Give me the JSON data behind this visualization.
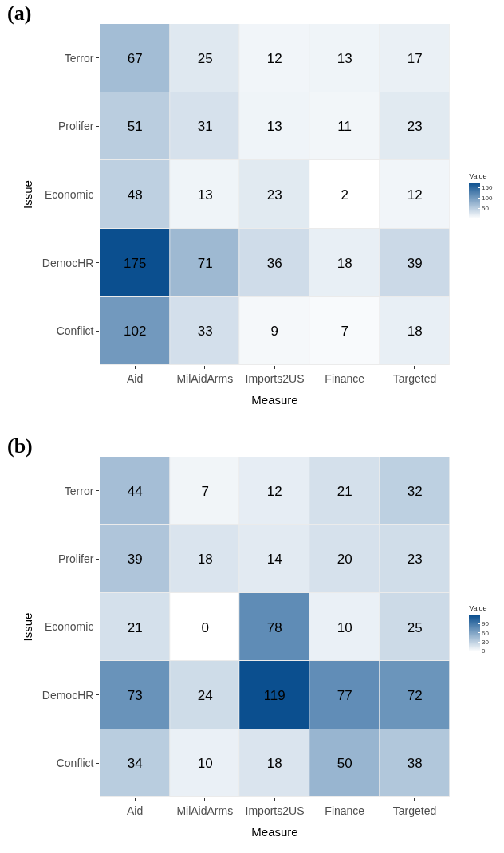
{
  "chart_data": [
    {
      "type": "heatmap",
      "title": "(a)",
      "xlabel": "Measure",
      "ylabel": "Issue",
      "clabel": "Value",
      "categories": [
        "Aid",
        "MilAidArms",
        "Imports2US",
        "Finance",
        "Targeted"
      ],
      "y_categories": [
        "Terror",
        "Prolifer",
        "Economic",
        "DemocHR",
        "Conflict"
      ],
      "cells": [
        [
          67,
          25,
          12,
          13,
          17
        ],
        [
          51,
          31,
          13,
          11,
          23
        ],
        [
          48,
          13,
          23,
          2,
          12
        ],
        [
          175,
          71,
          36,
          18,
          39
        ],
        [
          102,
          33,
          9,
          7,
          18
        ]
      ],
      "clim": [
        2,
        175
      ],
      "cticks": [
        50,
        100,
        150
      ],
      "colors": [
        "#ffffff",
        "#0b4f8f"
      ],
      "data_labels": true
    },
    {
      "type": "heatmap",
      "title": "(b)",
      "xlabel": "Measure",
      "ylabel": "Issue",
      "clabel": "Value",
      "categories": [
        "Aid",
        "MilAidArms",
        "Imports2US",
        "Finance",
        "Targeted"
      ],
      "y_categories": [
        "Terror",
        "Prolifer",
        "Economic",
        "DemocHR",
        "Conflict"
      ],
      "cells": [
        [
          44,
          7,
          12,
          21,
          32
        ],
        [
          39,
          18,
          14,
          20,
          23
        ],
        [
          21,
          0,
          78,
          10,
          25
        ],
        [
          73,
          24,
          119,
          77,
          72
        ],
        [
          34,
          10,
          18,
          50,
          38
        ]
      ],
      "clim": [
        0,
        119
      ],
      "cticks": [
        0,
        30,
        60,
        90
      ],
      "colors": [
        "#ffffff",
        "#0b4f8f"
      ],
      "data_labels": true
    }
  ]
}
